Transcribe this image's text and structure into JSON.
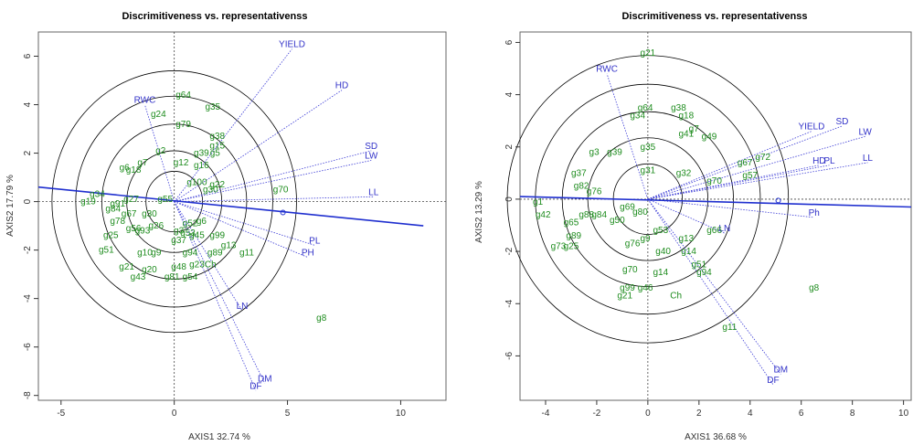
{
  "chart_data": [
    {
      "type": "scatter",
      "title": "Discrimitiveness vs. representativenss",
      "xlabel": "AXIS1 32.74 %",
      "ylabel": "AXIS2 17.79 %",
      "xlim": [
        -6,
        12
      ],
      "ylim": [
        -8.2,
        7
      ],
      "xticks": [
        -5,
        0,
        5,
        10
      ],
      "yticks": [
        -8,
        -6,
        -4,
        -2,
        0,
        2,
        4,
        6
      ],
      "circle_radii": [
        1.25,
        2.1,
        3.2,
        4.35,
        5.4
      ],
      "average_environment_axis": {
        "from": [
          -6,
          0.6
        ],
        "to": [
          11,
          -1.0
        ],
        "mean_env": [
          4.8,
          -0.45
        ]
      },
      "environments": [
        {
          "name": "YIELD",
          "x": 5.2,
          "y": 6.3
        },
        {
          "name": "HD",
          "x": 7.4,
          "y": 4.6
        },
        {
          "name": "RWC",
          "x": -1.3,
          "y": 4.0
        },
        {
          "name": "SD",
          "x": 8.7,
          "y": 2.1
        },
        {
          "name": "LW",
          "x": 8.7,
          "y": 1.7
        },
        {
          "name": "LL",
          "x": 8.8,
          "y": 0.2
        },
        {
          "name": "PL",
          "x": 6.2,
          "y": -1.8
        },
        {
          "name": "PH",
          "x": 5.9,
          "y": -2.3
        },
        {
          "name": "LN",
          "x": 3.0,
          "y": -4.5
        },
        {
          "name": "DM",
          "x": 4.0,
          "y": -7.5
        },
        {
          "name": "DF",
          "x": 3.6,
          "y": -7.8
        }
      ],
      "genotypes": [
        {
          "name": "g64",
          "x": 0.4,
          "y": 4.4
        },
        {
          "name": "g35",
          "x": 1.7,
          "y": 3.9
        },
        {
          "name": "g24",
          "x": -0.7,
          "y": 3.6
        },
        {
          "name": "g79",
          "x": 0.4,
          "y": 3.2
        },
        {
          "name": "g38",
          "x": 1.9,
          "y": 2.7
        },
        {
          "name": "g15",
          "x": 1.9,
          "y": 2.3
        },
        {
          "name": "g2",
          "x": -0.6,
          "y": 2.1
        },
        {
          "name": "g39",
          "x": 1.2,
          "y": 2.0
        },
        {
          "name": "g5",
          "x": 1.8,
          "y": 2.0
        },
        {
          "name": "g16",
          "x": 1.2,
          "y": 1.5
        },
        {
          "name": "g12",
          "x": 0.3,
          "y": 1.6
        },
        {
          "name": "g7",
          "x": -1.4,
          "y": 1.6
        },
        {
          "name": "g6",
          "x": -2.2,
          "y": 1.4
        },
        {
          "name": "g18",
          "x": -1.8,
          "y": 1.3
        },
        {
          "name": "g22",
          "x": 1.9,
          "y": 0.7
        },
        {
          "name": "g30",
          "x": 1.6,
          "y": 0.5
        },
        {
          "name": "g70",
          "x": 4.7,
          "y": 0.5
        },
        {
          "name": "g100",
          "x": 1.0,
          "y": 0.8
        },
        {
          "name": "g34",
          "x": -3.4,
          "y": 0.3
        },
        {
          "name": "g19",
          "x": -3.8,
          "y": 0.0
        },
        {
          "name": "g27",
          "x": -1.9,
          "y": 0.1
        },
        {
          "name": "g91",
          "x": -2.5,
          "y": -0.1
        },
        {
          "name": "g55",
          "x": -0.4,
          "y": 0.1
        },
        {
          "name": "g84",
          "x": -2.7,
          "y": -0.3
        },
        {
          "name": "g67",
          "x": -2.0,
          "y": -0.5
        },
        {
          "name": "g30",
          "x": -1.1,
          "y": -0.5
        },
        {
          "name": "g78",
          "x": -2.5,
          "y": -0.8
        },
        {
          "name": "g26",
          "x": -0.8,
          "y": -1.0
        },
        {
          "name": "g52",
          "x": 0.7,
          "y": -0.9
        },
        {
          "name": "g6",
          "x": 1.2,
          "y": -0.8
        },
        {
          "name": "g93",
          "x": -1.4,
          "y": -1.2
        },
        {
          "name": "g56",
          "x": -1.8,
          "y": -1.1
        },
        {
          "name": "g25",
          "x": -2.8,
          "y": -1.4
        },
        {
          "name": "g3",
          "x": 0.2,
          "y": -1.2
        },
        {
          "name": "g53",
          "x": 0.6,
          "y": -1.3
        },
        {
          "name": "g45",
          "x": 1.0,
          "y": -1.4
        },
        {
          "name": "g99",
          "x": 1.9,
          "y": -1.4
        },
        {
          "name": "g13",
          "x": 2.4,
          "y": -1.8
        },
        {
          "name": "g37",
          "x": 0.2,
          "y": -1.6
        },
        {
          "name": "g9",
          "x": -0.8,
          "y": -2.1
        },
        {
          "name": "g51",
          "x": -3.0,
          "y": -2.0
        },
        {
          "name": "g10",
          "x": -1.3,
          "y": -2.1
        },
        {
          "name": "g94",
          "x": 0.7,
          "y": -2.1
        },
        {
          "name": "g89",
          "x": 1.8,
          "y": -2.1
        },
        {
          "name": "g11",
          "x": 3.2,
          "y": -2.1
        },
        {
          "name": "g23",
          "x": 1.0,
          "y": -2.6
        },
        {
          "name": "g48",
          "x": 0.2,
          "y": -2.7
        },
        {
          "name": "Ch",
          "x": 1.6,
          "y": -2.6
        },
        {
          "name": "g21",
          "x": -2.1,
          "y": -2.7
        },
        {
          "name": "g20",
          "x": -1.1,
          "y": -2.8
        },
        {
          "name": "g43",
          "x": -1.6,
          "y": -3.1
        },
        {
          "name": "g81",
          "x": -0.1,
          "y": -3.1
        },
        {
          "name": "g54",
          "x": 0.7,
          "y": -3.1
        },
        {
          "name": "g8",
          "x": 6.5,
          "y": -4.8
        }
      ]
    },
    {
      "type": "scatter",
      "title": "Discrimitiveness vs. representativenss",
      "xlabel": "AXIS1 36.68 %",
      "ylabel": "AXIS2 13.29 %",
      "xlim": [
        -5,
        10.3
      ],
      "ylim": [
        -7.7,
        6.4
      ],
      "xticks": [
        -4,
        -2,
        0,
        2,
        4,
        6,
        8,
        10
      ],
      "yticks": [
        -6,
        -4,
        -2,
        0,
        2,
        4,
        6
      ],
      "circle_radii": [
        1.35,
        2.35,
        3.35,
        4.4,
        5.5
      ],
      "average_environment_axis": {
        "from": [
          -5,
          0.1
        ],
        "to": [
          10.3,
          -0.3
        ],
        "mean_env": [
          5.1,
          -0.05
        ]
      },
      "environments": [
        {
          "name": "RWC",
          "x": -1.6,
          "y": 4.8
        },
        {
          "name": "YIELD",
          "x": 6.4,
          "y": 2.6
        },
        {
          "name": "SD",
          "x": 7.6,
          "y": 2.8
        },
        {
          "name": "LW",
          "x": 8.5,
          "y": 2.4
        },
        {
          "name": "HD",
          "x": 6.7,
          "y": 1.3
        },
        {
          "name": "PL",
          "x": 7.1,
          "y": 1.3
        },
        {
          "name": "LL",
          "x": 8.6,
          "y": 1.4
        },
        {
          "name": "Ph",
          "x": 6.5,
          "y": -0.7
        },
        {
          "name": "LN",
          "x": 3.0,
          "y": -1.3
        },
        {
          "name": "DM",
          "x": 5.2,
          "y": -6.7
        },
        {
          "name": "DF",
          "x": 4.9,
          "y": -7.1
        }
      ],
      "genotypes": [
        {
          "name": "g21",
          "x": 0.0,
          "y": 5.6
        },
        {
          "name": "g64",
          "x": -0.1,
          "y": 3.5
        },
        {
          "name": "g34",
          "x": -0.4,
          "y": 3.2
        },
        {
          "name": "g38",
          "x": 1.2,
          "y": 3.5
        },
        {
          "name": "g18",
          "x": 1.5,
          "y": 3.2
        },
        {
          "name": "g7",
          "x": 1.8,
          "y": 2.7
        },
        {
          "name": "g41",
          "x": 1.5,
          "y": 2.5
        },
        {
          "name": "g49",
          "x": 2.4,
          "y": 2.4
        },
        {
          "name": "g35",
          "x": 0.0,
          "y": 2.0
        },
        {
          "name": "g3",
          "x": -2.1,
          "y": 1.8
        },
        {
          "name": "g39",
          "x": -1.3,
          "y": 1.8
        },
        {
          "name": "g37",
          "x": -2.7,
          "y": 1.0
        },
        {
          "name": "g82",
          "x": -2.6,
          "y": 0.5
        },
        {
          "name": "g31",
          "x": 0.0,
          "y": 1.1
        },
        {
          "name": "g32",
          "x": 1.4,
          "y": 1.0
        },
        {
          "name": "g70",
          "x": 2.6,
          "y": 0.7
        },
        {
          "name": "g67",
          "x": 3.8,
          "y": 1.4
        },
        {
          "name": "g72",
          "x": 4.5,
          "y": 1.6
        },
        {
          "name": "g57",
          "x": 4.0,
          "y": 0.9
        },
        {
          "name": "g76",
          "x": -2.1,
          "y": 0.3
        },
        {
          "name": "g1",
          "x": -4.3,
          "y": -0.1
        },
        {
          "name": "g42",
          "x": -4.1,
          "y": -0.6
        },
        {
          "name": "g65",
          "x": -3.0,
          "y": -0.9
        },
        {
          "name": "g88",
          "x": -2.4,
          "y": -0.6
        },
        {
          "name": "g84",
          "x": -1.9,
          "y": -0.6
        },
        {
          "name": "g80",
          "x": -0.3,
          "y": -0.5
        },
        {
          "name": "g69",
          "x": -0.8,
          "y": -0.3
        },
        {
          "name": "g50",
          "x": -1.2,
          "y": -0.8
        },
        {
          "name": "g89",
          "x": -2.9,
          "y": -1.4
        },
        {
          "name": "g25",
          "x": -3.0,
          "y": -1.8
        },
        {
          "name": "g73",
          "x": -3.5,
          "y": -1.8
        },
        {
          "name": "g53",
          "x": 0.5,
          "y": -1.2
        },
        {
          "name": "g13",
          "x": 1.5,
          "y": -1.5
        },
        {
          "name": "g66",
          "x": 2.6,
          "y": -1.2
        },
        {
          "name": "g76",
          "x": -0.6,
          "y": -1.7
        },
        {
          "name": "g9",
          "x": -0.1,
          "y": -1.5
        },
        {
          "name": "g40",
          "x": 0.6,
          "y": -2.0
        },
        {
          "name": "g14",
          "x": 1.6,
          "y": -2.0
        },
        {
          "name": "g51",
          "x": 2.0,
          "y": -2.5
        },
        {
          "name": "g94",
          "x": 2.2,
          "y": -2.8
        },
        {
          "name": "g70",
          "x": -0.7,
          "y": -2.7
        },
        {
          "name": "g14",
          "x": 0.5,
          "y": -2.8
        },
        {
          "name": "Ch",
          "x": 1.1,
          "y": -3.7
        },
        {
          "name": "g46",
          "x": -0.1,
          "y": -3.4
        },
        {
          "name": "g99",
          "x": -0.8,
          "y": -3.4
        },
        {
          "name": "g21",
          "x": -0.9,
          "y": -3.7
        },
        {
          "name": "g8",
          "x": 6.5,
          "y": -3.4
        },
        {
          "name": "g11",
          "x": 3.2,
          "y": -4.9
        }
      ]
    }
  ]
}
